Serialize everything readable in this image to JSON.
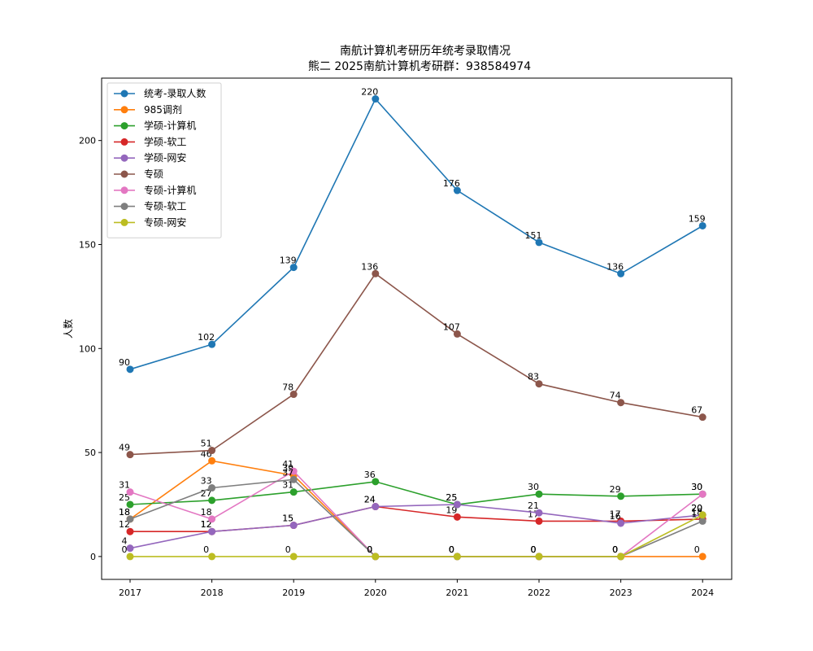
{
  "chart_data": {
    "type": "line",
    "title": "南航计算机考研历年统考录取情况",
    "subtitle": "熊二 2025南航计算机考研群：938584974",
    "xlabel": "",
    "ylabel": "人数",
    "x": [
      "2017",
      "2018",
      "2019",
      "2020",
      "2021",
      "2022",
      "2023",
      "2024"
    ],
    "ylim": [
      -11,
      230
    ],
    "yticks": [
      0,
      50,
      100,
      150,
      200
    ],
    "grid": false,
    "legend_position": "top-left",
    "series": [
      {
        "name": "统考-录取人数",
        "color": "#1f77b4",
        "values": [
          90,
          102,
          139,
          220,
          176,
          151,
          136,
          159
        ]
      },
      {
        "name": "985调剂",
        "color": "#ff7f0e",
        "values": [
          18,
          46,
          39,
          0,
          0,
          0,
          0,
          0
        ]
      },
      {
        "name": "学硕-计算机",
        "color": "#2ca02c",
        "values": [
          25,
          27,
          31,
          36,
          25,
          30,
          29,
          30
        ]
      },
      {
        "name": "学硕-软工",
        "color": "#d62728",
        "values": [
          12,
          12,
          15,
          24,
          19,
          17,
          17,
          18
        ]
      },
      {
        "name": "学硕-网安",
        "color": "#9467bd",
        "values": [
          4,
          12,
          15,
          24,
          25,
          21,
          16,
          20
        ]
      },
      {
        "name": "专硕",
        "color": "#8c564b",
        "values": [
          49,
          51,
          78,
          136,
          107,
          83,
          74,
          67
        ]
      },
      {
        "name": "专硕-计算机",
        "color": "#e377c2",
        "values": [
          31,
          18,
          41,
          0,
          0,
          0,
          0,
          30
        ]
      },
      {
        "name": "专硕-软工",
        "color": "#7f7f7f",
        "values": [
          18,
          33,
          37,
          0,
          0,
          0,
          0,
          17
        ]
      },
      {
        "name": "专硕-网安",
        "color": "#bcbd22",
        "values": [
          0,
          0,
          0,
          0,
          0,
          0,
          0,
          20
        ]
      }
    ]
  }
}
